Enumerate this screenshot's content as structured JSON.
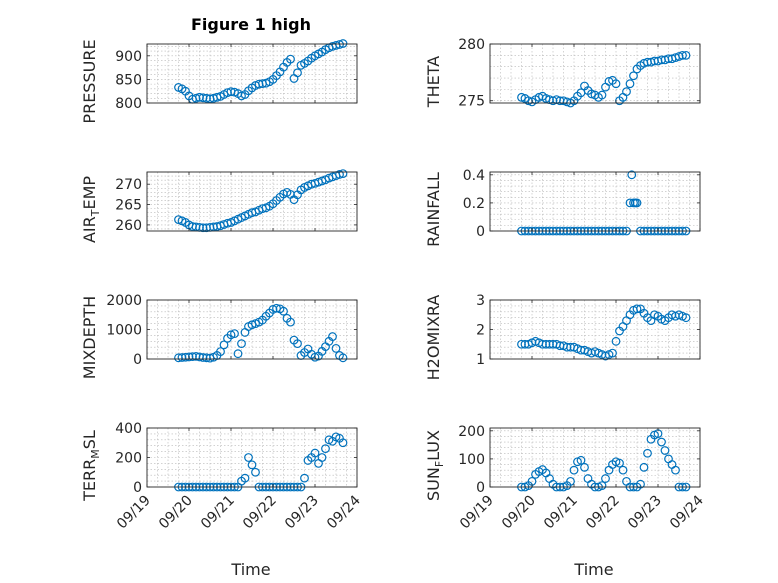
{
  "figure": {
    "title": "Figure 1 high",
    "x_axis_label": "Time",
    "accent_color": "#0072BD"
  },
  "chart_data": [
    {
      "type": "scatter",
      "panel": "pressure",
      "ylabel": "PRESSURE",
      "ylim": [
        800,
        925
      ],
      "yticks": [
        800,
        850,
        900
      ],
      "xlim": [
        "09/19",
        "09/24"
      ],
      "xticks": [
        "09/19",
        "09/20",
        "09/21",
        "09/22",
        "09/23",
        "09/24"
      ],
      "show_xtick_labels": false,
      "grid": true,
      "x": [
        "09/19 18:00",
        "09/19 20:00",
        "09/19 22:00",
        "09/20 00:00",
        "09/20 02:00",
        "09/20 04:00",
        "09/20 06:00",
        "09/20 08:00",
        "09/20 10:00",
        "09/20 12:00",
        "09/20 14:00",
        "09/20 16:00",
        "09/20 18:00",
        "09/20 20:00",
        "09/20 22:00",
        "09/21 00:00",
        "09/21 02:00",
        "09/21 04:00",
        "09/21 06:00",
        "09/21 08:00",
        "09/21 10:00",
        "09/21 12:00",
        "09/21 14:00",
        "09/21 16:00",
        "09/21 18:00",
        "09/21 20:00",
        "09/21 22:00",
        "09/22 00:00",
        "09/22 02:00",
        "09/22 04:00",
        "09/22 06:00",
        "09/22 08:00",
        "09/22 10:00",
        "09/22 12:00",
        "09/22 14:00",
        "09/22 16:00",
        "09/22 18:00",
        "09/22 20:00",
        "09/22 22:00",
        "09/23 00:00",
        "09/23 02:00",
        "09/23 04:00",
        "09/23 06:00",
        "09/23 08:00",
        "09/23 10:00",
        "09/23 12:00",
        "09/23 14:00",
        "09/23 16:00"
      ],
      "y": [
        833,
        830,
        825,
        815,
        808,
        810,
        812,
        811,
        810,
        809,
        810,
        812,
        814,
        818,
        822,
        824,
        823,
        820,
        815,
        818,
        826,
        832,
        837,
        840,
        841,
        842,
        845,
        850,
        858,
        866,
        876,
        886,
        893,
        852,
        864,
        880,
        884,
        889,
        895,
        900,
        904,
        908,
        913,
        917,
        920,
        922,
        924,
        926
      ]
    },
    {
      "type": "scatter",
      "panel": "theta",
      "ylabel": "THETA",
      "ylim": [
        274.8,
        280
      ],
      "yticks": [
        275,
        280
      ],
      "xlim": [
        "09/19",
        "09/24"
      ],
      "xticks": [
        "09/19",
        "09/20",
        "09/21",
        "09/22",
        "09/23",
        "09/24"
      ],
      "show_xtick_labels": false,
      "grid": true,
      "x": [
        "09/19 18:00",
        "09/19 20:00",
        "09/19 22:00",
        "09/20 00:00",
        "09/20 02:00",
        "09/20 04:00",
        "09/20 06:00",
        "09/20 08:00",
        "09/20 10:00",
        "09/20 12:00",
        "09/20 14:00",
        "09/20 16:00",
        "09/20 18:00",
        "09/20 20:00",
        "09/20 22:00",
        "09/21 00:00",
        "09/21 02:00",
        "09/21 04:00",
        "09/21 06:00",
        "09/21 08:00",
        "09/21 10:00",
        "09/21 12:00",
        "09/21 14:00",
        "09/21 16:00",
        "09/21 18:00",
        "09/21 20:00",
        "09/21 22:00",
        "09/22 00:00",
        "09/22 02:00",
        "09/22 04:00",
        "09/22 06:00",
        "09/22 08:00",
        "09/22 10:00",
        "09/22 12:00",
        "09/22 14:00",
        "09/22 16:00",
        "09/22 18:00",
        "09/22 20:00",
        "09/22 22:00",
        "09/23 00:00",
        "09/23 02:00",
        "09/23 04:00",
        "09/23 06:00",
        "09/23 08:00",
        "09/23 10:00",
        "09/23 12:00",
        "09/23 14:00",
        "09/23 16:00"
      ],
      "y": [
        275.3,
        275.2,
        275.0,
        274.9,
        275.1,
        275.3,
        275.4,
        275.2,
        275.1,
        275.0,
        275.1,
        275.0,
        275.0,
        274.9,
        274.8,
        275.0,
        275.4,
        275.7,
        276.3,
        275.9,
        275.6,
        275.5,
        275.3,
        275.5,
        276.2,
        276.7,
        276.8,
        276.5,
        275.0,
        275.3,
        275.8,
        276.5,
        277.2,
        277.8,
        278.1,
        278.3,
        278.4,
        278.4,
        278.5,
        278.5,
        278.6,
        278.6,
        278.7,
        278.7,
        278.8,
        278.9,
        279.0,
        279.0
      ]
    },
    {
      "type": "scatter",
      "panel": "air-temp",
      "ylabel": "AIR_TEMP",
      "ylim": [
        258.5,
        273
      ],
      "yticks": [
        260,
        265,
        270
      ],
      "xlim": [
        "09/19",
        "09/24"
      ],
      "xticks": [
        "09/19",
        "09/20",
        "09/21",
        "09/22",
        "09/23",
        "09/24"
      ],
      "show_xtick_labels": false,
      "grid": true,
      "x": [
        "09/19 18:00",
        "09/19 20:00",
        "09/19 22:00",
        "09/20 00:00",
        "09/20 02:00",
        "09/20 04:00",
        "09/20 06:00",
        "09/20 08:00",
        "09/20 10:00",
        "09/20 12:00",
        "09/20 14:00",
        "09/20 16:00",
        "09/20 18:00",
        "09/20 20:00",
        "09/20 22:00",
        "09/21 00:00",
        "09/21 02:00",
        "09/21 04:00",
        "09/21 06:00",
        "09/21 08:00",
        "09/21 10:00",
        "09/21 12:00",
        "09/21 14:00",
        "09/21 16:00",
        "09/21 18:00",
        "09/21 20:00",
        "09/21 22:00",
        "09/22 00:00",
        "09/22 02:00",
        "09/22 04:00",
        "09/22 06:00",
        "09/22 08:00",
        "09/22 10:00",
        "09/22 12:00",
        "09/22 14:00",
        "09/22 16:00",
        "09/22 18:00",
        "09/22 20:00",
        "09/22 22:00",
        "09/23 00:00",
        "09/23 02:00",
        "09/23 04:00",
        "09/23 06:00",
        "09/23 08:00",
        "09/23 10:00",
        "09/23 12:00",
        "09/23 14:00",
        "09/23 16:00"
      ],
      "y": [
        261.3,
        261.0,
        260.6,
        260.0,
        259.6,
        259.5,
        259.4,
        259.3,
        259.3,
        259.4,
        259.5,
        259.6,
        259.8,
        260.1,
        260.4,
        260.6,
        261.0,
        261.4,
        261.8,
        262.2,
        262.6,
        263.0,
        263.2,
        263.6,
        264.0,
        264.2,
        264.6,
        265.2,
        266.0,
        266.8,
        267.6,
        268.0,
        267.5,
        266.2,
        267.4,
        268.6,
        269.2,
        269.6,
        270.0,
        270.2,
        270.5,
        270.8,
        271.1,
        271.5,
        271.8,
        272.1,
        272.4,
        272.6
      ]
    },
    {
      "type": "scatter",
      "panel": "rainfall",
      "ylabel": "RAINFALL",
      "ylim": [
        0,
        0.42
      ],
      "yticks": [
        0,
        0.2,
        0.4
      ],
      "xlim": [
        "09/19",
        "09/24"
      ],
      "xticks": [
        "09/19",
        "09/20",
        "09/21",
        "09/22",
        "09/23",
        "09/24"
      ],
      "show_xtick_labels": false,
      "grid": true,
      "x": [
        "09/19 18:00",
        "09/19 20:00",
        "09/19 22:00",
        "09/20 00:00",
        "09/20 02:00",
        "09/20 04:00",
        "09/20 06:00",
        "09/20 08:00",
        "09/20 10:00",
        "09/20 12:00",
        "09/20 14:00",
        "09/20 16:00",
        "09/20 18:00",
        "09/20 20:00",
        "09/20 22:00",
        "09/21 00:00",
        "09/21 02:00",
        "09/21 04:00",
        "09/21 06:00",
        "09/21 08:00",
        "09/21 10:00",
        "09/21 12:00",
        "09/21 14:00",
        "09/21 16:00",
        "09/21 18:00",
        "09/21 20:00",
        "09/21 22:00",
        "09/22 00:00",
        "09/22 02:00",
        "09/22 04:00",
        "09/22 06:00",
        "09/22 08:00",
        "09/22 09:00",
        "09/22 10:00",
        "09/22 11:00",
        "09/22 12:00",
        "09/22 14:00",
        "09/22 16:00",
        "09/22 18:00",
        "09/22 20:00",
        "09/22 22:00",
        "09/23 00:00",
        "09/23 02:00",
        "09/23 04:00",
        "09/23 06:00",
        "09/23 08:00",
        "09/23 10:00",
        "09/23 12:00",
        "09/23 14:00",
        "09/23 16:00"
      ],
      "y": [
        0,
        0,
        0,
        0,
        0,
        0,
        0,
        0,
        0,
        0,
        0,
        0,
        0,
        0,
        0,
        0,
        0,
        0,
        0,
        0,
        0,
        0,
        0,
        0,
        0,
        0,
        0,
        0,
        0,
        0,
        0,
        0.2,
        0.4,
        0.2,
        0.2,
        0.2,
        0,
        0,
        0,
        0,
        0,
        0,
        0,
        0,
        0,
        0,
        0,
        0,
        0,
        0
      ]
    },
    {
      "type": "scatter",
      "panel": "mixdepth",
      "ylabel": "MIXDEPTH",
      "ylim": [
        0,
        2000
      ],
      "yticks": [
        0,
        1000,
        2000
      ],
      "xlim": [
        "09/19",
        "09/24"
      ],
      "xticks": [
        "09/19",
        "09/20",
        "09/21",
        "09/22",
        "09/23",
        "09/24"
      ],
      "show_xtick_labels": false,
      "grid": true,
      "x": [
        "09/19 18:00",
        "09/19 20:00",
        "09/19 22:00",
        "09/20 00:00",
        "09/20 02:00",
        "09/20 04:00",
        "09/20 06:00",
        "09/20 08:00",
        "09/20 10:00",
        "09/20 12:00",
        "09/20 14:00",
        "09/20 16:00",
        "09/20 18:00",
        "09/20 20:00",
        "09/20 22:00",
        "09/21 00:00",
        "09/21 02:00",
        "09/21 04:00",
        "09/21 06:00",
        "09/21 08:00",
        "09/21 10:00",
        "09/21 12:00",
        "09/21 14:00",
        "09/21 16:00",
        "09/21 18:00",
        "09/21 20:00",
        "09/21 22:00",
        "09/22 00:00",
        "09/22 02:00",
        "09/22 04:00",
        "09/22 06:00",
        "09/22 08:00",
        "09/22 10:00",
        "09/22 12:00",
        "09/22 14:00",
        "09/22 16:00",
        "09/22 18:00",
        "09/22 20:00",
        "09/22 22:00",
        "09/23 00:00",
        "09/23 02:00",
        "09/23 04:00",
        "09/23 06:00",
        "09/23 08:00",
        "09/23 10:00",
        "09/23 12:00",
        "09/23 14:00",
        "09/23 16:00"
      ],
      "y": [
        40,
        50,
        60,
        70,
        80,
        90,
        70,
        50,
        40,
        30,
        60,
        120,
        250,
        480,
        700,
        820,
        860,
        180,
        520,
        900,
        1100,
        1160,
        1200,
        1250,
        1320,
        1450,
        1560,
        1680,
        1720,
        1700,
        1620,
        1380,
        1250,
        640,
        520,
        120,
        220,
        340,
        160,
        60,
        100,
        260,
        420,
        600,
        760,
        360,
        120,
        40
      ]
    },
    {
      "type": "scatter",
      "panel": "h2omixra",
      "ylabel": "H2OMIXRA",
      "ylim": [
        1,
        3
      ],
      "yticks": [
        1,
        2,
        3
      ],
      "xlim": [
        "09/19",
        "09/24"
      ],
      "xticks": [
        "09/19",
        "09/20",
        "09/21",
        "09/22",
        "09/23",
        "09/24"
      ],
      "show_xtick_labels": false,
      "grid": true,
      "x": [
        "09/19 18:00",
        "09/19 20:00",
        "09/19 22:00",
        "09/20 00:00",
        "09/20 02:00",
        "09/20 04:00",
        "09/20 06:00",
        "09/20 08:00",
        "09/20 10:00",
        "09/20 12:00",
        "09/20 14:00",
        "09/20 16:00",
        "09/20 18:00",
        "09/20 20:00",
        "09/20 22:00",
        "09/21 00:00",
        "09/21 02:00",
        "09/21 04:00",
        "09/21 06:00",
        "09/21 08:00",
        "09/21 10:00",
        "09/21 12:00",
        "09/21 14:00",
        "09/21 16:00",
        "09/21 18:00",
        "09/21 20:00",
        "09/21 22:00",
        "09/22 00:00",
        "09/22 02:00",
        "09/22 04:00",
        "09/22 06:00",
        "09/22 08:00",
        "09/22 10:00",
        "09/22 12:00",
        "09/22 14:00",
        "09/22 16:00",
        "09/22 18:00",
        "09/22 20:00",
        "09/22 22:00",
        "09/23 00:00",
        "09/23 02:00",
        "09/23 04:00",
        "09/23 06:00",
        "09/23 08:00",
        "09/23 10:00",
        "09/23 12:00",
        "09/23 14:00",
        "09/23 16:00"
      ],
      "y": [
        1.5,
        1.5,
        1.5,
        1.55,
        1.6,
        1.55,
        1.5,
        1.5,
        1.5,
        1.5,
        1.5,
        1.45,
        1.45,
        1.4,
        1.4,
        1.4,
        1.35,
        1.3,
        1.3,
        1.25,
        1.2,
        1.25,
        1.2,
        1.15,
        1.1,
        1.15,
        1.2,
        1.6,
        1.95,
        2.1,
        2.3,
        2.5,
        2.65,
        2.7,
        2.7,
        2.55,
        2.4,
        2.3,
        2.5,
        2.45,
        2.35,
        2.3,
        2.4,
        2.5,
        2.45,
        2.5,
        2.45,
        2.4
      ]
    },
    {
      "type": "scatter",
      "panel": "terr-msl",
      "ylabel": "TERR_MSL",
      "ylim": [
        0,
        400
      ],
      "yticks": [
        0,
        200,
        400
      ],
      "xlim": [
        "09/19",
        "09/24"
      ],
      "xticks": [
        "09/19",
        "09/20",
        "09/21",
        "09/22",
        "09/23",
        "09/24"
      ],
      "show_xtick_labels": true,
      "grid": true,
      "x": [
        "09/19 18:00",
        "09/19 20:00",
        "09/19 22:00",
        "09/20 00:00",
        "09/20 02:00",
        "09/20 04:00",
        "09/20 06:00",
        "09/20 08:00",
        "09/20 10:00",
        "09/20 12:00",
        "09/20 14:00",
        "09/20 16:00",
        "09/20 18:00",
        "09/20 20:00",
        "09/20 22:00",
        "09/21 00:00",
        "09/21 02:00",
        "09/21 04:00",
        "09/21 06:00",
        "09/21 08:00",
        "09/21 10:00",
        "09/21 12:00",
        "09/21 14:00",
        "09/21 16:00",
        "09/21 18:00",
        "09/21 20:00",
        "09/21 22:00",
        "09/22 00:00",
        "09/22 02:00",
        "09/22 04:00",
        "09/22 06:00",
        "09/22 08:00",
        "09/22 10:00",
        "09/22 12:00",
        "09/22 14:00",
        "09/22 16:00",
        "09/22 18:00",
        "09/22 20:00",
        "09/22 22:00",
        "09/23 00:00",
        "09/23 02:00",
        "09/23 04:00",
        "09/23 06:00",
        "09/23 08:00",
        "09/23 10:00",
        "09/23 12:00",
        "09/23 14:00",
        "09/23 16:00"
      ],
      "y": [
        0,
        0,
        0,
        0,
        0,
        0,
        0,
        0,
        0,
        0,
        0,
        0,
        0,
        0,
        0,
        0,
        0,
        0,
        40,
        60,
        200,
        150,
        100,
        0,
        0,
        0,
        0,
        0,
        0,
        0,
        0,
        0,
        0,
        0,
        0,
        0,
        60,
        180,
        200,
        230,
        160,
        200,
        260,
        320,
        310,
        340,
        330,
        300
      ]
    },
    {
      "type": "scatter",
      "panel": "sun-flux",
      "ylabel": "SUN_FLUX",
      "ylim": [
        0,
        210
      ],
      "yticks": [
        0,
        100,
        200
      ],
      "xlim": [
        "09/19",
        "09/24"
      ],
      "xticks": [
        "09/19",
        "09/20",
        "09/21",
        "09/22",
        "09/23",
        "09/24"
      ],
      "show_xtick_labels": true,
      "grid": true,
      "x": [
        "09/19 18:00",
        "09/19 20:00",
        "09/19 22:00",
        "09/20 00:00",
        "09/20 02:00",
        "09/20 04:00",
        "09/20 06:00",
        "09/20 08:00",
        "09/20 10:00",
        "09/20 12:00",
        "09/20 14:00",
        "09/20 16:00",
        "09/20 18:00",
        "09/20 20:00",
        "09/20 22:00",
        "09/21 00:00",
        "09/21 02:00",
        "09/21 04:00",
        "09/21 06:00",
        "09/21 08:00",
        "09/21 10:00",
        "09/21 12:00",
        "09/21 14:00",
        "09/21 16:00",
        "09/21 18:00",
        "09/21 20:00",
        "09/21 22:00",
        "09/22 00:00",
        "09/22 02:00",
        "09/22 04:00",
        "09/22 06:00",
        "09/22 08:00",
        "09/22 10:00",
        "09/22 12:00",
        "09/22 14:00",
        "09/22 16:00",
        "09/22 18:00",
        "09/22 20:00",
        "09/22 22:00",
        "09/23 00:00",
        "09/23 02:00",
        "09/23 04:00",
        "09/23 06:00",
        "09/23 08:00",
        "09/23 10:00",
        "09/23 12:00",
        "09/23 14:00",
        "09/23 16:00"
      ],
      "y": [
        0,
        0,
        5,
        20,
        45,
        55,
        62,
        50,
        30,
        10,
        0,
        0,
        0,
        5,
        20,
        60,
        90,
        95,
        70,
        30,
        10,
        0,
        0,
        5,
        30,
        60,
        80,
        90,
        85,
        60,
        20,
        0,
        0,
        0,
        10,
        70,
        120,
        170,
        185,
        190,
        160,
        130,
        100,
        80,
        60,
        0,
        0,
        0
      ]
    }
  ]
}
